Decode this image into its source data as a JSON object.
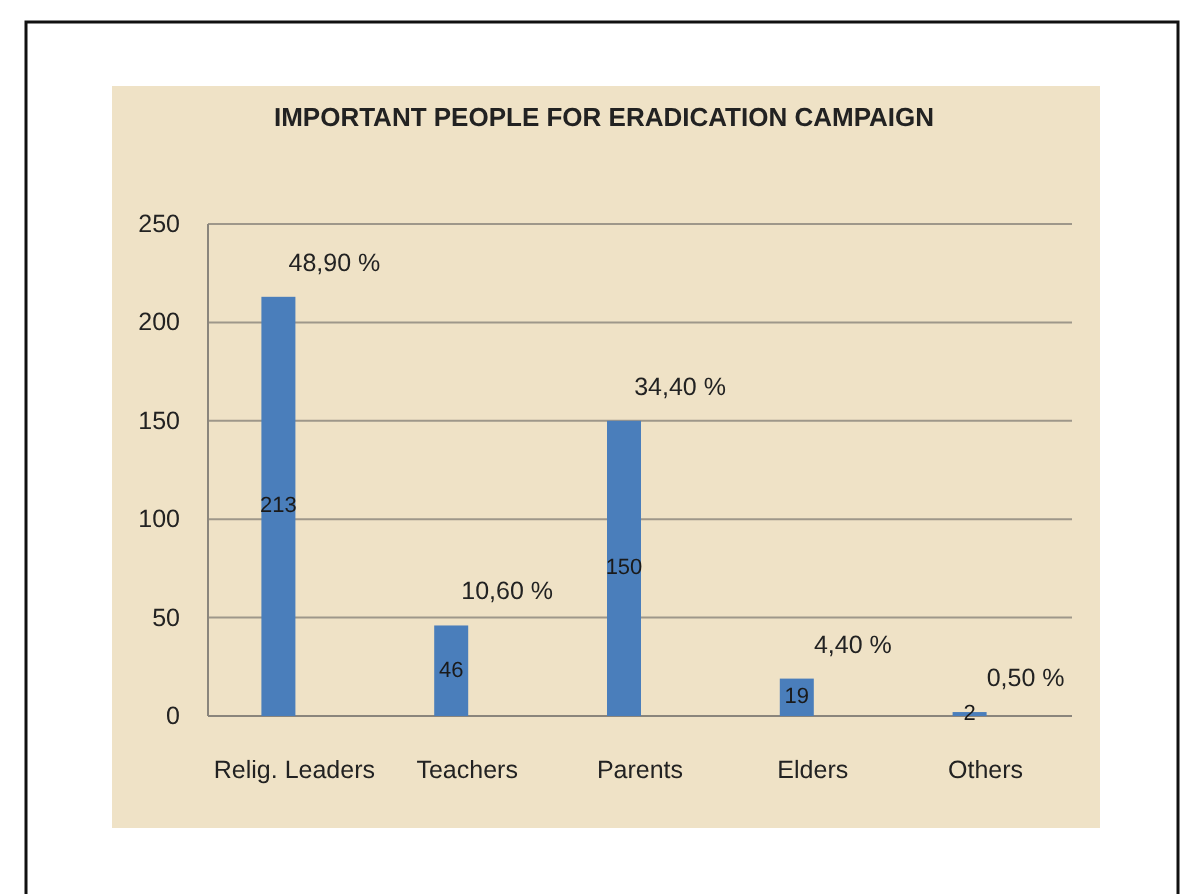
{
  "chart_data": {
    "type": "bar",
    "title": "IMPORTANT PEOPLE FOR ERADICATION CAMPAIGN",
    "categories": [
      "Relig. Leaders",
      "Teachers",
      "Parents",
      "Elders",
      "Others"
    ],
    "values": [
      213,
      46,
      150,
      19,
      2
    ],
    "color": "#4a7ebb",
    "ylim": [
      0,
      250
    ],
    "yticks": [
      0,
      50,
      100,
      150,
      200,
      250
    ],
    "grid": "y",
    "data_labels": true,
    "annotations": [
      {
        "text": "48,90 %",
        "x": "Relig. Leaders",
        "y": 213
      },
      {
        "text": "10,60 %",
        "x": "Teachers",
        "y": 46
      },
      {
        "text": "34,40 %",
        "x": "Parents",
        "y": 150
      },
      {
        "text": "4,40 %",
        "x": "Elders",
        "y": 19
      },
      {
        "text": "0,50 %",
        "x": "Others",
        "y": 2
      }
    ]
  }
}
